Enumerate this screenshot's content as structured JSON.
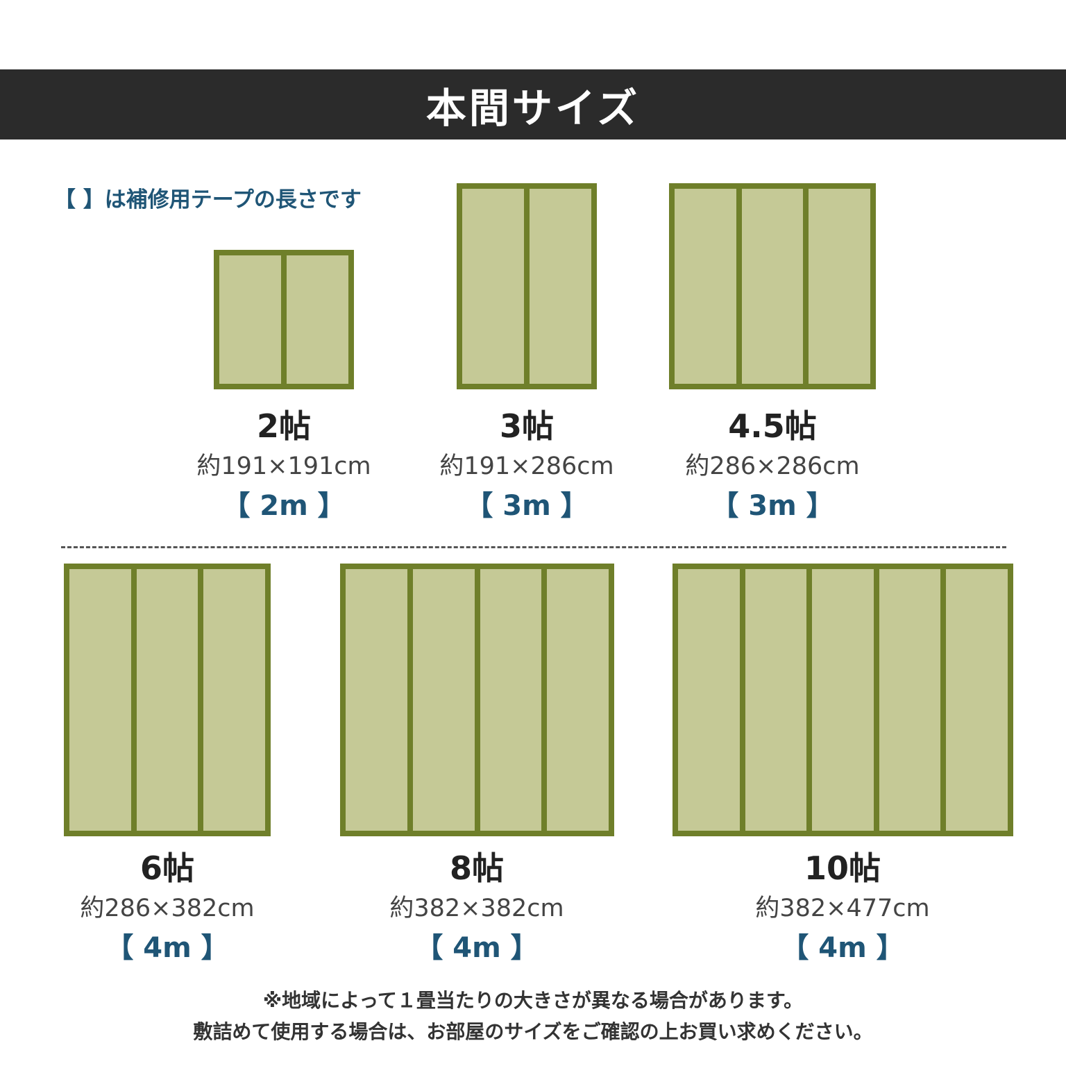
{
  "header": {
    "title": "本間サイズ"
  },
  "note": "【 】は補修用テープの長さです",
  "colors": {
    "banner": "#2b2b2b",
    "mat_border": "#6f7f2a",
    "mat_fill": "#c5c996",
    "accent": "#1f5576"
  },
  "sizes": [
    {
      "title": "2帖",
      "dims": "約191×191cm",
      "tape": "【 2m 】",
      "panels": 2
    },
    {
      "title": "3帖",
      "dims": "約191×286cm",
      "tape": "【 3m 】",
      "panels": 2
    },
    {
      "title": "4.5帖",
      "dims": "約286×286cm",
      "tape": "【 3m 】",
      "panels": 3
    },
    {
      "title": "6帖",
      "dims": "約286×382cm",
      "tape": "【 4m 】",
      "panels": 3
    },
    {
      "title": "8帖",
      "dims": "約382×382cm",
      "tape": "【 4m 】",
      "panels": 4
    },
    {
      "title": "10帖",
      "dims": "約382×477cm",
      "tape": "【 4m 】",
      "panels": 5
    }
  ],
  "footer": {
    "line1": "※地域によって１畳当たりの大きさが異なる場合があります。",
    "line2": "敷詰めて使用する場合は、お部屋のサイズをご確認の上お買い求めください。"
  }
}
